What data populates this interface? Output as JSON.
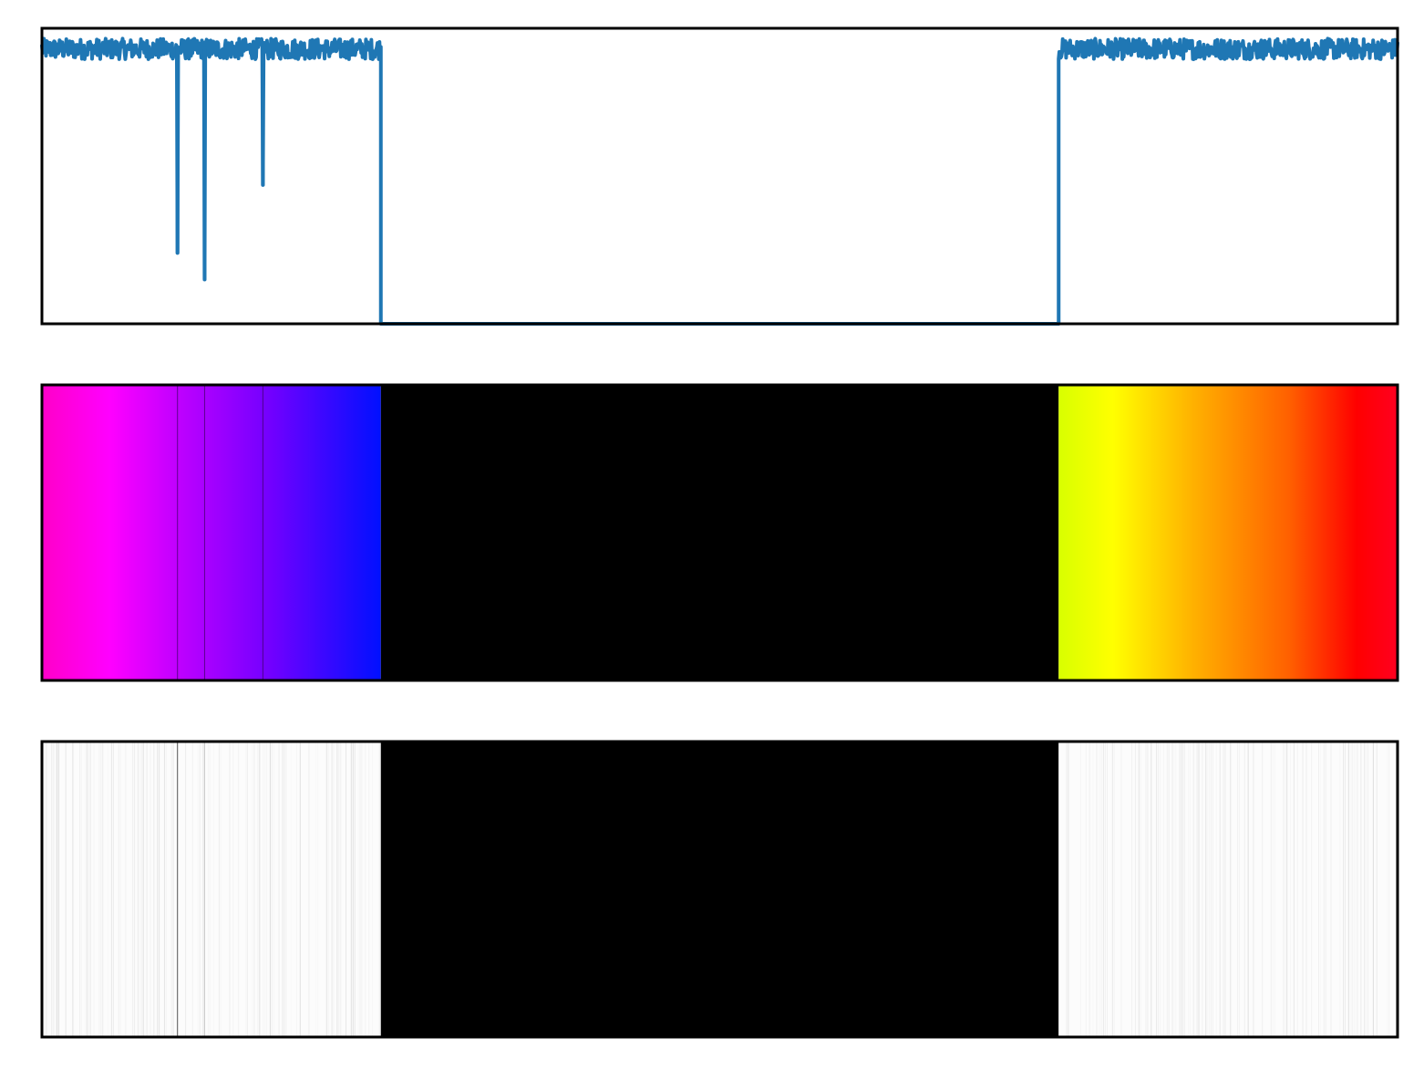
{
  "chart_data": [
    {
      "type": "line",
      "panel": "signal",
      "xlim": [
        0,
        1000
      ],
      "ylim": [
        0,
        1
      ],
      "grid": false,
      "axes_visible": false,
      "line_color": "#1f77b4",
      "baseline": 0.93,
      "noise_amplitude": 0.035,
      "valid_ranges": [
        [
          0,
          250
        ],
        [
          750,
          1000
        ]
      ],
      "gap_value": 0.0,
      "dips": [
        {
          "x": 100,
          "y": 0.24
        },
        {
          "x": 120,
          "y": 0.15
        },
        {
          "x": 163,
          "y": 0.47
        }
      ]
    },
    {
      "type": "heatmap",
      "panel": "hue-colormap",
      "xlim": [
        0,
        1000
      ],
      "axes_visible": false,
      "masked_color": "#000000",
      "masked_range": [
        250,
        750
      ],
      "colormap": "hsv",
      "color_stops": [
        {
          "x": 0,
          "color": "#ff00c8"
        },
        {
          "x": 50,
          "color": "#ff00ff"
        },
        {
          "x": 100,
          "color": "#c000ff"
        },
        {
          "x": 170,
          "color": "#7000ff"
        },
        {
          "x": 250,
          "color": "#0010ff"
        },
        {
          "x": 750,
          "color": "#d8ff00"
        },
        {
          "x": 790,
          "color": "#ffff00"
        },
        {
          "x": 850,
          "color": "#ffb000"
        },
        {
          "x": 920,
          "color": "#ff6000"
        },
        {
          "x": 970,
          "color": "#ff0000"
        },
        {
          "x": 1000,
          "color": "#ff0020"
        }
      ],
      "separator_lines_at": [
        100,
        120,
        163
      ]
    },
    {
      "type": "heatmap",
      "panel": "grayscale-intensity",
      "xlim": [
        0,
        1000
      ],
      "axes_visible": false,
      "masked_color": "#000000",
      "masked_range": [
        250,
        750
      ],
      "colormap": "gray",
      "background_color": "#fcfcfc",
      "dark_line_at": 100,
      "light_line_at": 120
    }
  ]
}
